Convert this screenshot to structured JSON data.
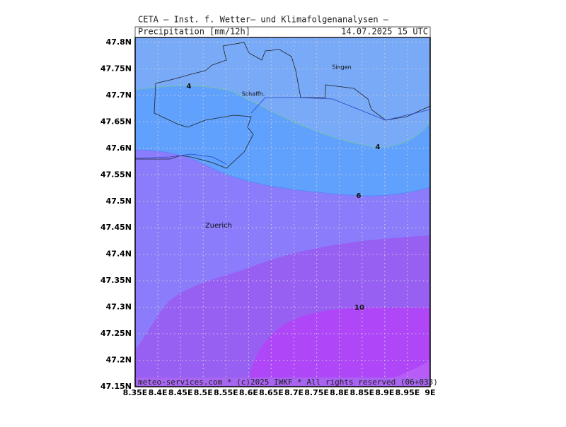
{
  "header": {
    "title": "CETA – Inst. f. Wetter– und Klimafolgenanalysen –",
    "field": "Precipitation [mm/12h]",
    "valid_time": "14.07.2025 15 UTC"
  },
  "map": {
    "x_ticks": [
      "8.35E",
      "8.4E",
      "8.45E",
      "8.5E",
      "8.55E",
      "8.6E",
      "8.65E",
      "8.7E",
      "8.75E",
      "8.8E",
      "8.85E",
      "8.9E",
      "8.95E",
      "9E"
    ],
    "y_ticks": [
      "47.8N",
      "47.75N",
      "47.7N",
      "47.65N",
      "47.6N",
      "47.55N",
      "47.5N",
      "47.45N",
      "47.4N",
      "47.35N",
      "47.3N",
      "47.25N",
      "47.2N",
      "47.15N"
    ],
    "places": [
      "Singen",
      "Schaffh.",
      "Zuerich"
    ],
    "contour_labels": [
      "4",
      "4",
      "6",
      "10"
    ]
  },
  "footer": "meteo-services.com * (c)2025 IWKF * All rights reserved (06+033)"
}
